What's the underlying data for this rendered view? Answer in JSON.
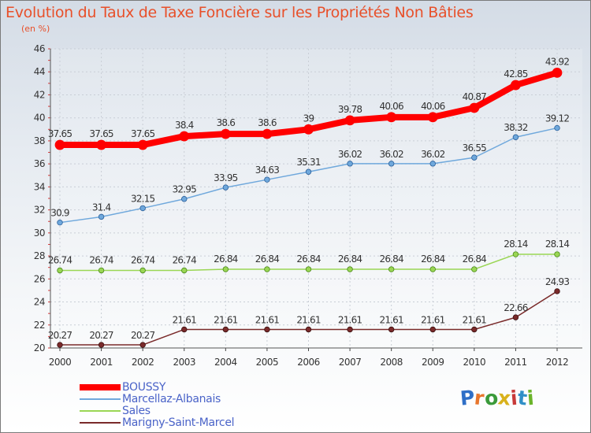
{
  "title": "Evolution du Taux de Taxe Foncière sur les Propriétés Non Bâties",
  "unit_label": "(en %)",
  "brand": {
    "letters": [
      "P",
      "r",
      "o",
      "x",
      "i",
      "t",
      "i"
    ],
    "colors": [
      "#2f6fc7",
      "#e8762c",
      "#3a9a3a",
      "#d9b21c",
      "#c83a3a",
      "#2f8fc7",
      "#6ab42a"
    ]
  },
  "chart_data": {
    "type": "line",
    "x": [
      "2000",
      "2001",
      "2002",
      "2003",
      "2004",
      "2005",
      "2006",
      "2007",
      "2008",
      "2009",
      "2010",
      "2011",
      "2012"
    ],
    "ylim": [
      20,
      46
    ],
    "yticks": [
      "20",
      "22",
      "24",
      "26",
      "28",
      "30",
      "32",
      "34",
      "36",
      "38",
      "40",
      "42",
      "44",
      "46"
    ],
    "grid": true,
    "legend_position": "bottom-left",
    "series": [
      {
        "name": "BOUSSY",
        "color": "#ff0000",
        "values": [
          37.65,
          37.65,
          37.65,
          38.4,
          38.6,
          38.6,
          39,
          39.78,
          40.06,
          40.06,
          40.87,
          42.85,
          43.92
        ],
        "labels": [
          "37.65",
          "37.65",
          "37.65",
          "38.4",
          "38.6",
          "38.6",
          "39",
          "39.78",
          "40.06",
          "40.06",
          "40.87",
          "42.85",
          "43.92"
        ]
      },
      {
        "name": "Marcellaz-Albanais",
        "color": "#6fa8dc",
        "values": [
          30.9,
          31.4,
          32.15,
          32.95,
          33.95,
          34.63,
          35.31,
          36.02,
          36.02,
          36.02,
          36.55,
          38.32,
          39.12
        ],
        "labels": [
          "30.9",
          "31.4",
          "32.15",
          "32.95",
          "33.95",
          "34.63",
          "35.31",
          "36.02",
          "36.02",
          "36.02",
          "36.55",
          "38.32",
          "39.12"
        ]
      },
      {
        "name": "Sales",
        "color": "#9ad654",
        "values": [
          26.74,
          26.74,
          26.74,
          26.74,
          26.84,
          26.84,
          26.84,
          26.84,
          26.84,
          26.84,
          26.84,
          28.14,
          28.14
        ],
        "labels": [
          "26.74",
          "26.74",
          "26.74",
          "26.74",
          "26.84",
          "26.84",
          "26.84",
          "26.84",
          "26.84",
          "26.84",
          "26.84",
          "28.14",
          "28.14"
        ]
      },
      {
        "name": "Marigny-Saint-Marcel",
        "color": "#7a2a2a",
        "values": [
          20.27,
          20.27,
          20.27,
          21.61,
          21.61,
          21.61,
          21.61,
          21.61,
          21.61,
          21.61,
          21.61,
          22.66,
          24.93
        ],
        "labels": [
          "20.27",
          "20.27",
          "20.27",
          "21.61",
          "21.61",
          "21.61",
          "21.61",
          "21.61",
          "21.61",
          "21.61",
          "21.61",
          "22.66",
          "24.93"
        ]
      }
    ]
  }
}
